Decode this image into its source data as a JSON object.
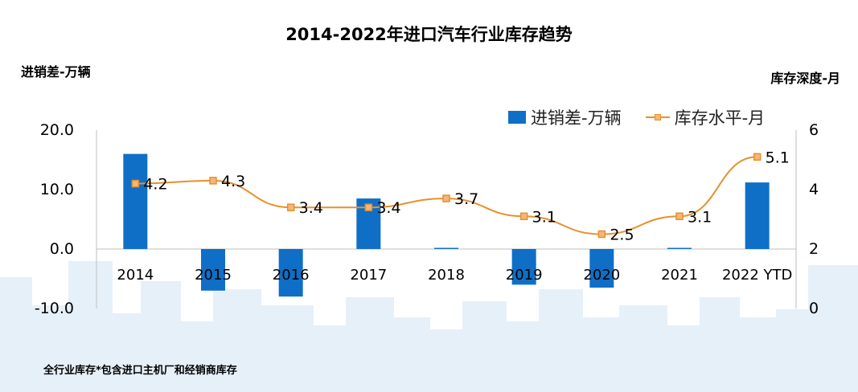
{
  "title": "2014-2022年进口汽车行业库存趋势",
  "left_axis_title": "进销差-万辆",
  "right_axis_title": "库存深度-月",
  "footnote": "全行业库存*包含进口主机厂和经销商库存",
  "colors": {
    "bar": "#0f6fc6",
    "line": "#e6912b",
    "marker_fill": "#f8b47a",
    "skyline": "#dbe9f7"
  },
  "chart_data": {
    "type": "bar+line",
    "categories": [
      "2014",
      "2015",
      "2016",
      "2017",
      "2018",
      "2019",
      "2020",
      "2021",
      "2022 YTD"
    ],
    "series": [
      {
        "name": "进销差-万辆",
        "type": "bar",
        "axis": "left",
        "values": [
          16.0,
          -7.0,
          -8.0,
          8.5,
          0.2,
          -6.0,
          -6.5,
          0.2,
          11.2
        ]
      },
      {
        "name": "库存水平-月",
        "type": "line",
        "axis": "right",
        "values": [
          4.2,
          4.3,
          3.4,
          3.4,
          3.7,
          3.1,
          2.5,
          3.1,
          5.1
        ],
        "labels": [
          "4.2",
          "4.3",
          "3.4",
          "3.4",
          "3.7",
          "3.1",
          "2.5",
          "3.1",
          "5.1"
        ]
      }
    ],
    "left_axis": {
      "min": -10,
      "max": 20,
      "ticks": [
        "20.0",
        "10.0",
        "0.0",
        "-10.0"
      ]
    },
    "right_axis": {
      "min": 0,
      "max": 6,
      "ticks": [
        "6",
        "4",
        "2",
        "0"
      ]
    },
    "legend": "top-right",
    "grid": false
  }
}
